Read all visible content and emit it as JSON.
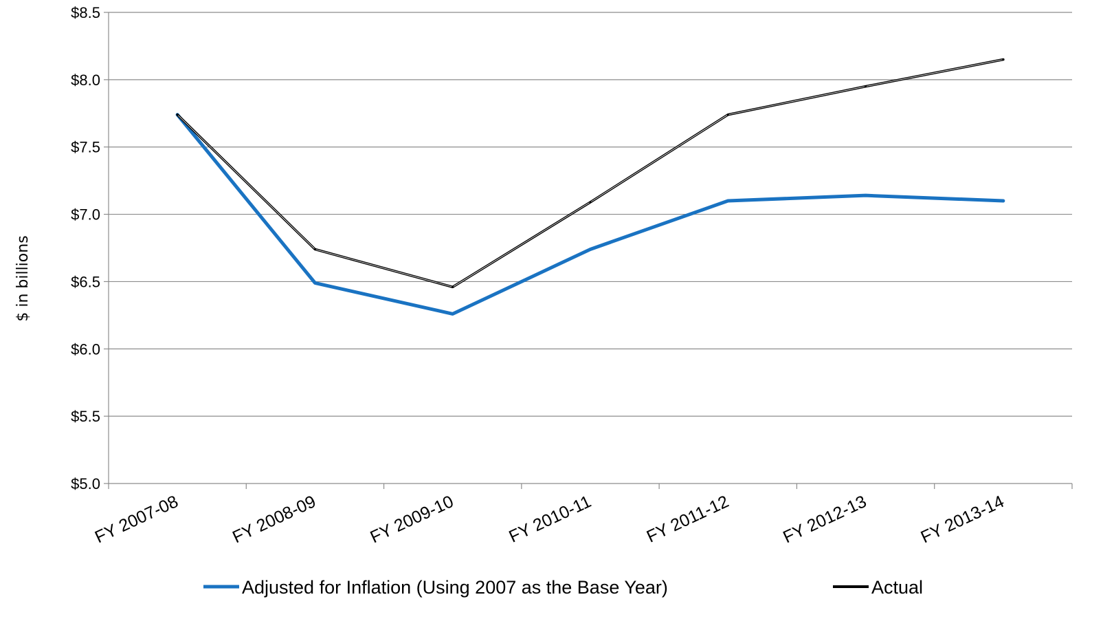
{
  "chart_data": {
    "type": "line",
    "categories": [
      "FY 2007-08",
      "FY 2008-09",
      "FY 2009-10",
      "FY 2010-11",
      "FY 2011-12",
      "FY 2012-13",
      "FY 2013-14"
    ],
    "series": [
      {
        "name": "Adjusted for Inflation (Using 2007 as the Base Year)",
        "color": "#1a73c2",
        "values": [
          7.74,
          6.49,
          6.26,
          6.74,
          7.1,
          7.14,
          7.1
        ]
      },
      {
        "name": "Actual",
        "color": "#000000",
        "values": [
          7.74,
          6.74,
          6.46,
          7.09,
          7.74,
          7.95,
          8.15
        ]
      }
    ],
    "title": "",
    "xlabel": "",
    "ylabel": "$ in billions",
    "ylim": [
      5.0,
      8.5
    ],
    "yticks": [
      "$5.0",
      "$5.5",
      "$6.0",
      "$6.5",
      "$7.0",
      "$7.5",
      "$8.0",
      "$8.5"
    ],
    "yticks_values": [
      5.0,
      5.5,
      6.0,
      6.5,
      7.0,
      7.5,
      8.0,
      8.5
    ],
    "grid": "horizontal",
    "legend_position": "bottom"
  }
}
